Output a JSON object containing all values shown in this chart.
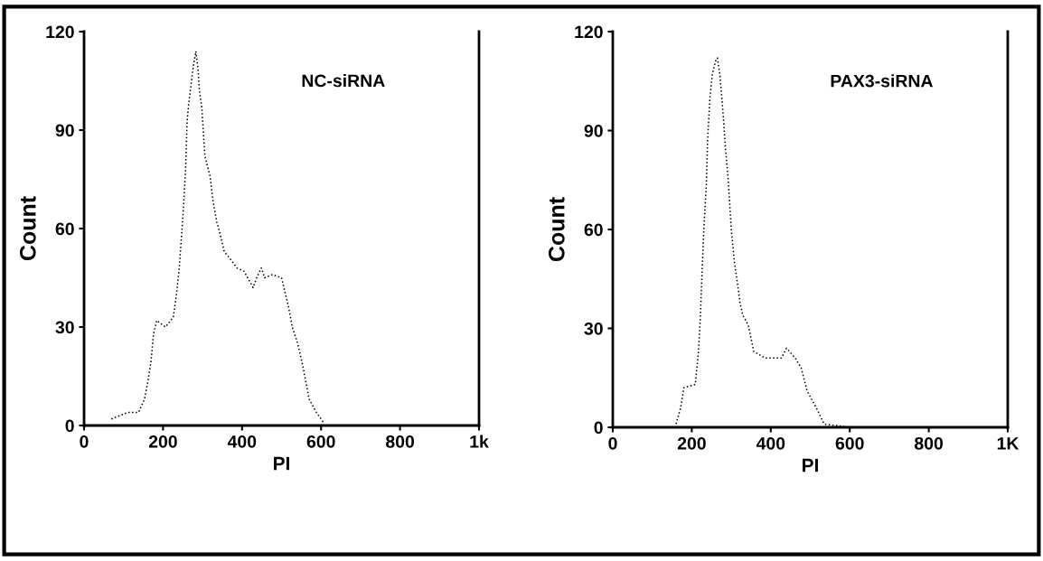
{
  "chart_data": [
    {
      "type": "line",
      "xlabel": "PI",
      "ylabel": "Count",
      "annotations": [
        "NC-siRNA"
      ],
      "xlim": [
        0,
        1000
      ],
      "ylim": [
        0,
        120
      ],
      "xticks": [
        0,
        200,
        400,
        600,
        800,
        {
          "value": 1000,
          "label": "1k"
        }
      ],
      "yticks": [
        0,
        30,
        60,
        90,
        120
      ],
      "line_style": "dotted",
      "marker": "none",
      "grid": false,
      "series": [
        {
          "color": "#000000",
          "x": [
            69,
            111,
            138,
            153,
            161,
            169,
            176,
            184,
            206,
            226,
            234,
            241,
            251,
            257,
            261,
            265,
            275,
            283,
            289,
            292,
            298,
            306,
            319,
            327,
            336,
            343,
            355,
            375,
            387,
            405,
            428,
            437,
            449,
            457,
            477,
            500,
            506,
            518,
            527,
            541,
            554,
            570,
            588,
            606
          ],
          "values": [
            2,
            4,
            4,
            8,
            13,
            19,
            28,
            32,
            30,
            33,
            40,
            48,
            65,
            78,
            93,
            98,
            108,
            114,
            108,
            102,
            97,
            82,
            76,
            68,
            62,
            59,
            53,
            50,
            48,
            47,
            42,
            45,
            48,
            45,
            46,
            45,
            42,
            36,
            30,
            25,
            18,
            8,
            4,
            1
          ]
        }
      ]
    },
    {
      "type": "line",
      "xlabel": "PI",
      "ylabel": "Count",
      "annotations": [
        "PAX3-siRNA"
      ],
      "xlim": [
        0,
        1000
      ],
      "ylim": [
        0,
        120
      ],
      "xticks": [
        0,
        200,
        400,
        600,
        800,
        {
          "value": 1000,
          "label": "1K"
        }
      ],
      "yticks": [
        0,
        30,
        60,
        90,
        120
      ],
      "line_style": "dotted",
      "marker": "none",
      "grid": false,
      "series": [
        {
          "color": "#000000",
          "x": [
            160,
            172,
            180,
            209,
            217,
            222,
            226,
            231,
            237,
            240,
            246,
            252,
            260,
            265,
            271,
            276,
            280,
            285,
            291,
            296,
            300,
            308,
            313,
            322,
            329,
            343,
            357,
            386,
            427,
            440,
            462,
            477,
            492,
            515,
            535,
            600,
            700,
            800,
            900,
            1000
          ],
          "values": [
            1,
            6,
            12,
            13,
            23,
            34,
            47,
            61,
            74,
            87,
            100,
            107,
            111,
            112,
            107,
            100,
            94,
            85,
            77,
            68,
            60,
            50,
            46,
            38,
            34,
            31,
            23,
            21,
            21,
            24,
            21,
            18,
            11,
            6,
            1,
            0,
            0,
            0,
            0,
            0
          ]
        }
      ]
    }
  ]
}
